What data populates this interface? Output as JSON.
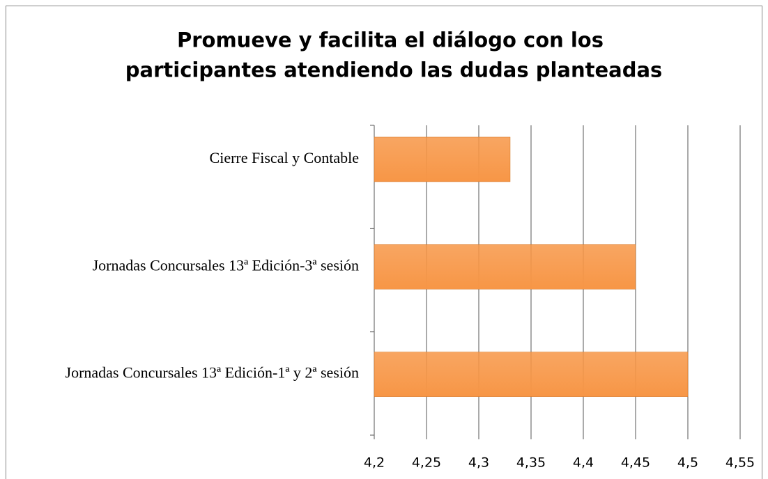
{
  "chart_data": {
    "type": "barh",
    "title": "Promueve y facilita el diálogo con los participantes atendiendo las dudas planteadas",
    "categories": [
      "Cierre Fiscal y Contable",
      "Jornadas Concursales 13ª Edición-3ª sesión",
      "Jornadas Concursales 13ª Edición-1ª y 2ª sesión"
    ],
    "values": [
      4.33,
      4.45,
      4.5
    ],
    "color": "#f79646",
    "xlim": [
      4.2,
      4.55
    ],
    "xticks": [
      {
        "value": 4.2,
        "label": "4,2"
      },
      {
        "value": 4.25,
        "label": "4,25"
      },
      {
        "value": 4.3,
        "label": "4,3"
      },
      {
        "value": 4.35,
        "label": "4,35"
      },
      {
        "value": 4.4,
        "label": "4,4"
      },
      {
        "value": 4.45,
        "label": "4,45"
      },
      {
        "value": 4.5,
        "label": "4,5"
      },
      {
        "value": 4.55,
        "label": "4,55"
      }
    ],
    "grid": true
  }
}
